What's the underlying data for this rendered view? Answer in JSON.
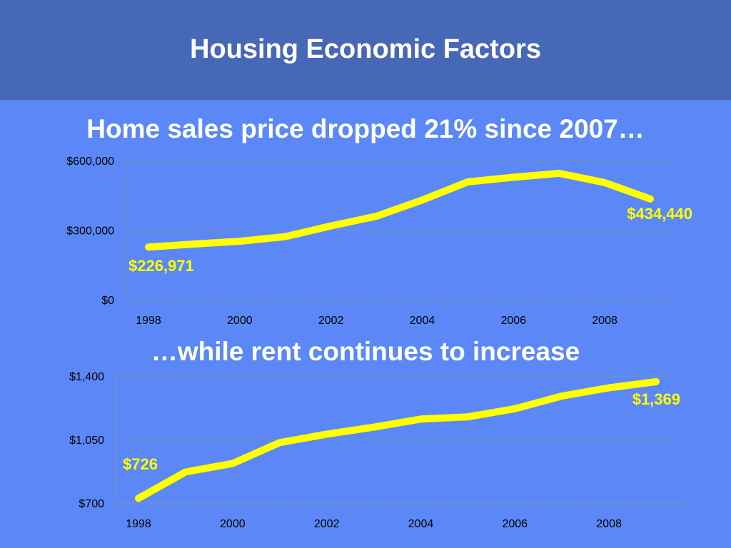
{
  "header": {
    "title": "Housing Economic Factors"
  },
  "colors": {
    "header_bg": "#4767b7",
    "slide_bg": "#5b88f6",
    "line": "#ffff00",
    "axis": "#7f8fb0"
  },
  "chart_data": [
    {
      "type": "line",
      "title": "Home sales price dropped 21% since 2007…",
      "x": [
        1998,
        1999,
        2000,
        2001,
        2002,
        2003,
        2004,
        2005,
        2006,
        2007,
        2008,
        2009
      ],
      "x_tick_labels": [
        "1998",
        "2000",
        "2002",
        "2004",
        "2006",
        "2008"
      ],
      "y_tick_labels": [
        "$600,000",
        "$300,000",
        "$0"
      ],
      "ylim": [
        0,
        600000
      ],
      "yticks": [
        0,
        300000,
        600000
      ],
      "grid": true,
      "series": [
        {
          "values": [
            226971,
            240000,
            252000,
            272000,
            318000,
            360000,
            430000,
            508000,
            528000,
            545000,
            505000,
            434440
          ]
        }
      ],
      "annotations": {
        "first": "$226,971",
        "last": "$434,440"
      }
    },
    {
      "type": "line",
      "title": "…while rent continues to increase",
      "x": [
        1998,
        1999,
        2000,
        2001,
        2002,
        2003,
        2004,
        2005,
        2006,
        2007,
        2008,
        2009
      ],
      "x_tick_labels": [
        "1998",
        "2000",
        "2002",
        "2004",
        "2006",
        "2008"
      ],
      "y_tick_labels": [
        "$1,400",
        "$1,050",
        "$700"
      ],
      "ylim": [
        700,
        1400
      ],
      "yticks": [
        700,
        1050,
        1400
      ],
      "grid": true,
      "series": [
        {
          "values": [
            726,
            871,
            918,
            1033,
            1080,
            1118,
            1163,
            1175,
            1220,
            1290,
            1335,
            1369
          ]
        }
      ],
      "annotations": {
        "first": "$726",
        "last": "$1,369"
      }
    }
  ]
}
